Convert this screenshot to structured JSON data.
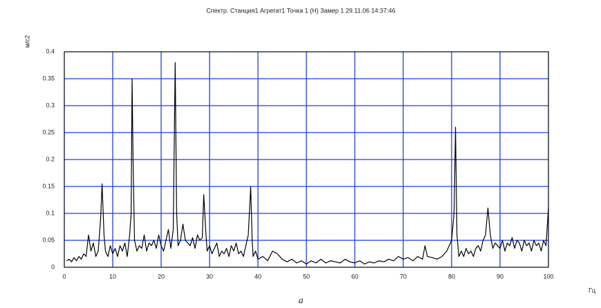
{
  "chart_data": {
    "type": "line",
    "title": "Спектр. Станция1 Агрегат1 Точка  1 (H) Замер  1 29.11.06 14:37:46",
    "y_label": "м/с2",
    "x_label": "Гц",
    "caption": "a",
    "x": [
      0.5,
      1,
      1.5,
      2,
      2.5,
      3,
      3.5,
      4,
      4.5,
      5,
      5.5,
      6,
      6.5,
      7,
      7.5,
      7.8,
      8.2,
      8.5,
      9,
      9.5,
      10,
      10.5,
      11,
      11.5,
      12,
      12.5,
      13,
      13.5,
      13.8,
      14,
      14.2,
      14.5,
      15,
      15.5,
      16,
      16.5,
      17,
      17.5,
      18,
      18.5,
      19,
      19.5,
      20,
      20.5,
      21,
      21.5,
      22,
      22.5,
      22.9,
      23.2,
      23.5,
      24,
      24.5,
      25,
      25.5,
      26,
      26.5,
      27,
      27.5,
      28,
      28.5,
      28.8,
      29.2,
      29.5,
      30,
      30.5,
      31,
      31.5,
      32,
      32.5,
      33,
      33.5,
      34,
      34.5,
      35,
      35.5,
      36,
      36.5,
      37,
      37.5,
      38,
      38.5,
      38.8,
      39,
      39.5,
      40,
      41,
      42,
      43,
      44,
      45,
      46,
      47,
      48,
      49,
      50,
      51,
      52,
      53,
      54,
      55,
      56,
      57,
      58,
      59,
      60,
      61,
      62,
      63,
      64,
      65,
      66,
      67,
      68,
      69,
      70,
      71,
      72,
      73,
      74,
      74.5,
      75,
      76,
      77,
      78,
      79,
      80,
      80.5,
      80.8,
      81.1,
      81.5,
      82,
      82.5,
      83,
      83.5,
      84,
      84.5,
      85,
      85.5,
      86,
      86.5,
      87,
      87.5,
      88,
      88.5,
      89,
      89.5,
      90,
      90.5,
      91,
      91.5,
      92,
      92.5,
      93,
      93.5,
      94,
      94.5,
      95,
      95.5,
      96,
      96.5,
      97,
      97.5,
      98,
      98.5,
      99,
      99.5,
      100
    ],
    "series": [
      {
        "color": "#000000",
        "values": [
          0.012,
          0.015,
          0.01,
          0.018,
          0.012,
          0.02,
          0.015,
          0.025,
          0.02,
          0.06,
          0.03,
          0.045,
          0.02,
          0.03,
          0.09,
          0.155,
          0.06,
          0.03,
          0.02,
          0.04,
          0.025,
          0.035,
          0.02,
          0.04,
          0.03,
          0.045,
          0.02,
          0.06,
          0.1,
          0.35,
          0.2,
          0.05,
          0.03,
          0.04,
          0.035,
          0.06,
          0.03,
          0.045,
          0.04,
          0.05,
          0.035,
          0.06,
          0.04,
          0.03,
          0.05,
          0.07,
          0.035,
          0.07,
          0.38,
          0.1,
          0.04,
          0.05,
          0.08,
          0.05,
          0.045,
          0.04,
          0.055,
          0.035,
          0.06,
          0.05,
          0.055,
          0.135,
          0.07,
          0.03,
          0.04,
          0.025,
          0.035,
          0.045,
          0.02,
          0.03,
          0.025,
          0.035,
          0.02,
          0.04,
          0.03,
          0.045,
          0.025,
          0.03,
          0.02,
          0.04,
          0.06,
          0.15,
          0.05,
          0.02,
          0.03,
          0.015,
          0.02,
          0.012,
          0.03,
          0.025,
          0.015,
          0.01,
          0.015,
          0.008,
          0.012,
          0.006,
          0.012,
          0.008,
          0.015,
          0.008,
          0.012,
          0.01,
          0.008,
          0.015,
          0.01,
          0.008,
          0.012,
          0.006,
          0.01,
          0.008,
          0.012,
          0.01,
          0.015,
          0.012,
          0.02,
          0.015,
          0.018,
          0.012,
          0.02,
          0.015,
          0.04,
          0.02,
          0.018,
          0.015,
          0.02,
          0.03,
          0.05,
          0.1,
          0.26,
          0.06,
          0.02,
          0.03,
          0.02,
          0.035,
          0.025,
          0.03,
          0.02,
          0.035,
          0.04,
          0.03,
          0.05,
          0.06,
          0.11,
          0.06,
          0.035,
          0.045,
          0.04,
          0.035,
          0.05,
          0.03,
          0.045,
          0.04,
          0.055,
          0.035,
          0.05,
          0.045,
          0.03,
          0.05,
          0.04,
          0.045,
          0.03,
          0.05,
          0.04,
          0.045,
          0.03,
          0.05,
          0.04,
          0.11
        ]
      }
    ],
    "xlim": [
      0,
      100
    ],
    "xticks": [
      0,
      10,
      20,
      30,
      40,
      50,
      60,
      70,
      80,
      90,
      100
    ],
    "ylim": [
      0,
      0.4
    ],
    "yticks": [
      0,
      0.05,
      0.1,
      0.15,
      0.2,
      0.25,
      0.3,
      0.35,
      0.4
    ],
    "grid": true,
    "grid_color": "#1f3fd6"
  }
}
